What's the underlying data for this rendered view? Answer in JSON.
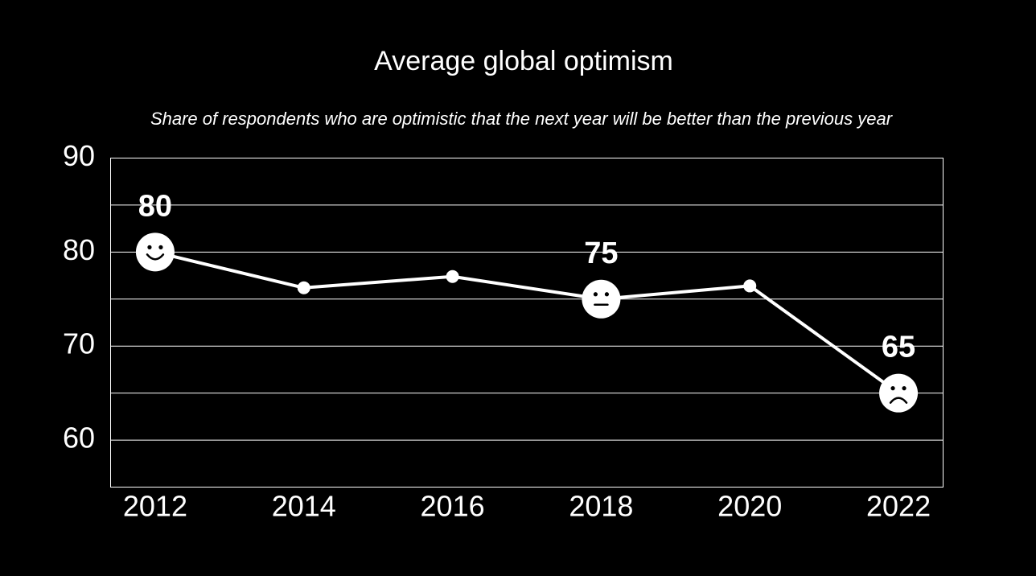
{
  "chart_data": {
    "type": "line",
    "title": "Average global optimism",
    "subtitle": "Share of respondents who are optimistic that the next year will be better than the previous year",
    "x": [
      2012,
      2014,
      2016,
      2018,
      2020,
      2022
    ],
    "series": [
      {
        "color": "#ffffff",
        "values": [
          80,
          76.2,
          77.4,
          75,
          76.4,
          65
        ]
      }
    ],
    "markers": [
      "smile",
      null,
      null,
      "neutral",
      null,
      "frown"
    ],
    "xlim": [
      2011.4,
      2022.6
    ],
    "xticks": [
      2012,
      2014,
      2016,
      2018,
      2020,
      2022
    ],
    "ylim": [
      55,
      90
    ],
    "yticks": [
      60,
      70,
      80,
      90
    ],
    "ygrid": [
      60,
      65,
      70,
      75,
      80,
      85
    ],
    "background": "#000000"
  }
}
